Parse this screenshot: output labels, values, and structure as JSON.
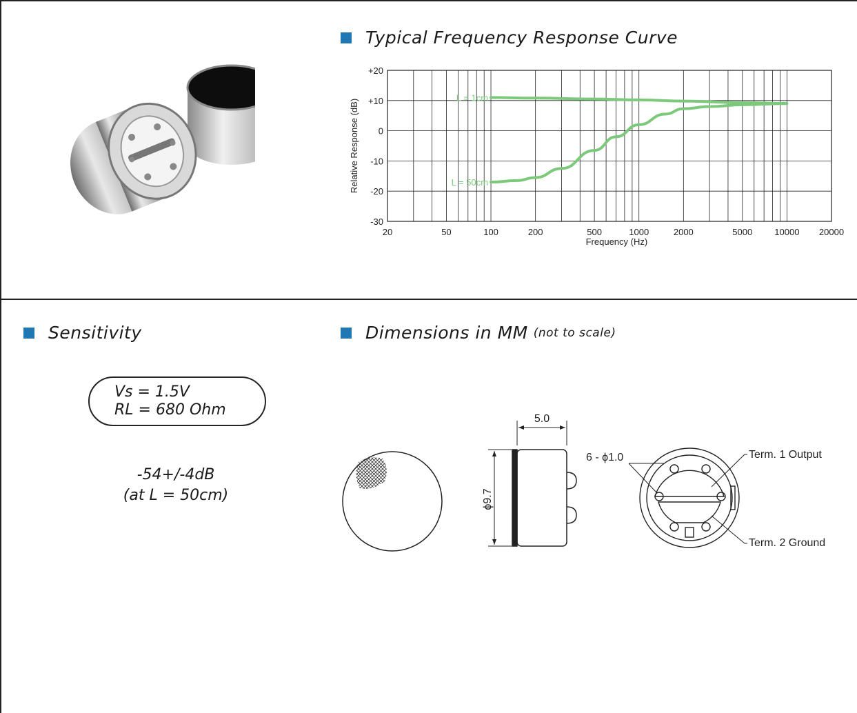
{
  "colors": {
    "bullet": "#1f77b4",
    "curve": "#7cc97c",
    "frame": "#222222"
  },
  "sections": {
    "frequency": {
      "title": "Typical Frequency Response Curve"
    },
    "sensitivity": {
      "title": "Sensitivity",
      "conditions": [
        "Vs = 1.5V",
        "RL = 680 Ohm"
      ],
      "value": "-54+/-4dB",
      "value_note": "(at L = 50cm)"
    },
    "dimensions": {
      "title": "Dimensions in MM",
      "title_note": "(not to scale)",
      "width_label": "5.0",
      "diameter_label": "ϕ9.7",
      "holes_label": "6 - ϕ1.0",
      "term1_label": "Term. 1 Output",
      "term2_label": "Term. 2 Ground"
    }
  },
  "chart_data": {
    "type": "line",
    "title": "",
    "xlabel": "Frequency (Hz)",
    "ylabel": "Relative Response (dB)",
    "xscale": "log",
    "xlim": [
      20,
      20000
    ],
    "ylim": [
      -30,
      20
    ],
    "x_ticks": [
      20,
      50,
      100,
      200,
      500,
      1000,
      2000,
      5000,
      10000,
      20000
    ],
    "y_ticks": [
      -30,
      -20,
      -10,
      0,
      10,
      20
    ],
    "y_tick_labels": [
      "-30",
      "-20",
      "-10",
      "0",
      "+10",
      "+20"
    ],
    "grid": true,
    "series": [
      {
        "name": "L = 1cm",
        "x": [
          100,
          200,
          500,
          1000,
          2000,
          5000,
          10000
        ],
        "y": [
          11,
          10.8,
          10.5,
          10.2,
          9.8,
          9.3,
          9
        ]
      },
      {
        "name": "L = 50cm",
        "x": [
          100,
          150,
          200,
          300,
          500,
          700,
          1000,
          1500,
          2000,
          3000,
          5000,
          10000
        ],
        "y": [
          -17,
          -16.5,
          -15.5,
          -12.5,
          -6.5,
          -2,
          2,
          5.5,
          7.3,
          8,
          8.6,
          9
        ]
      }
    ]
  }
}
